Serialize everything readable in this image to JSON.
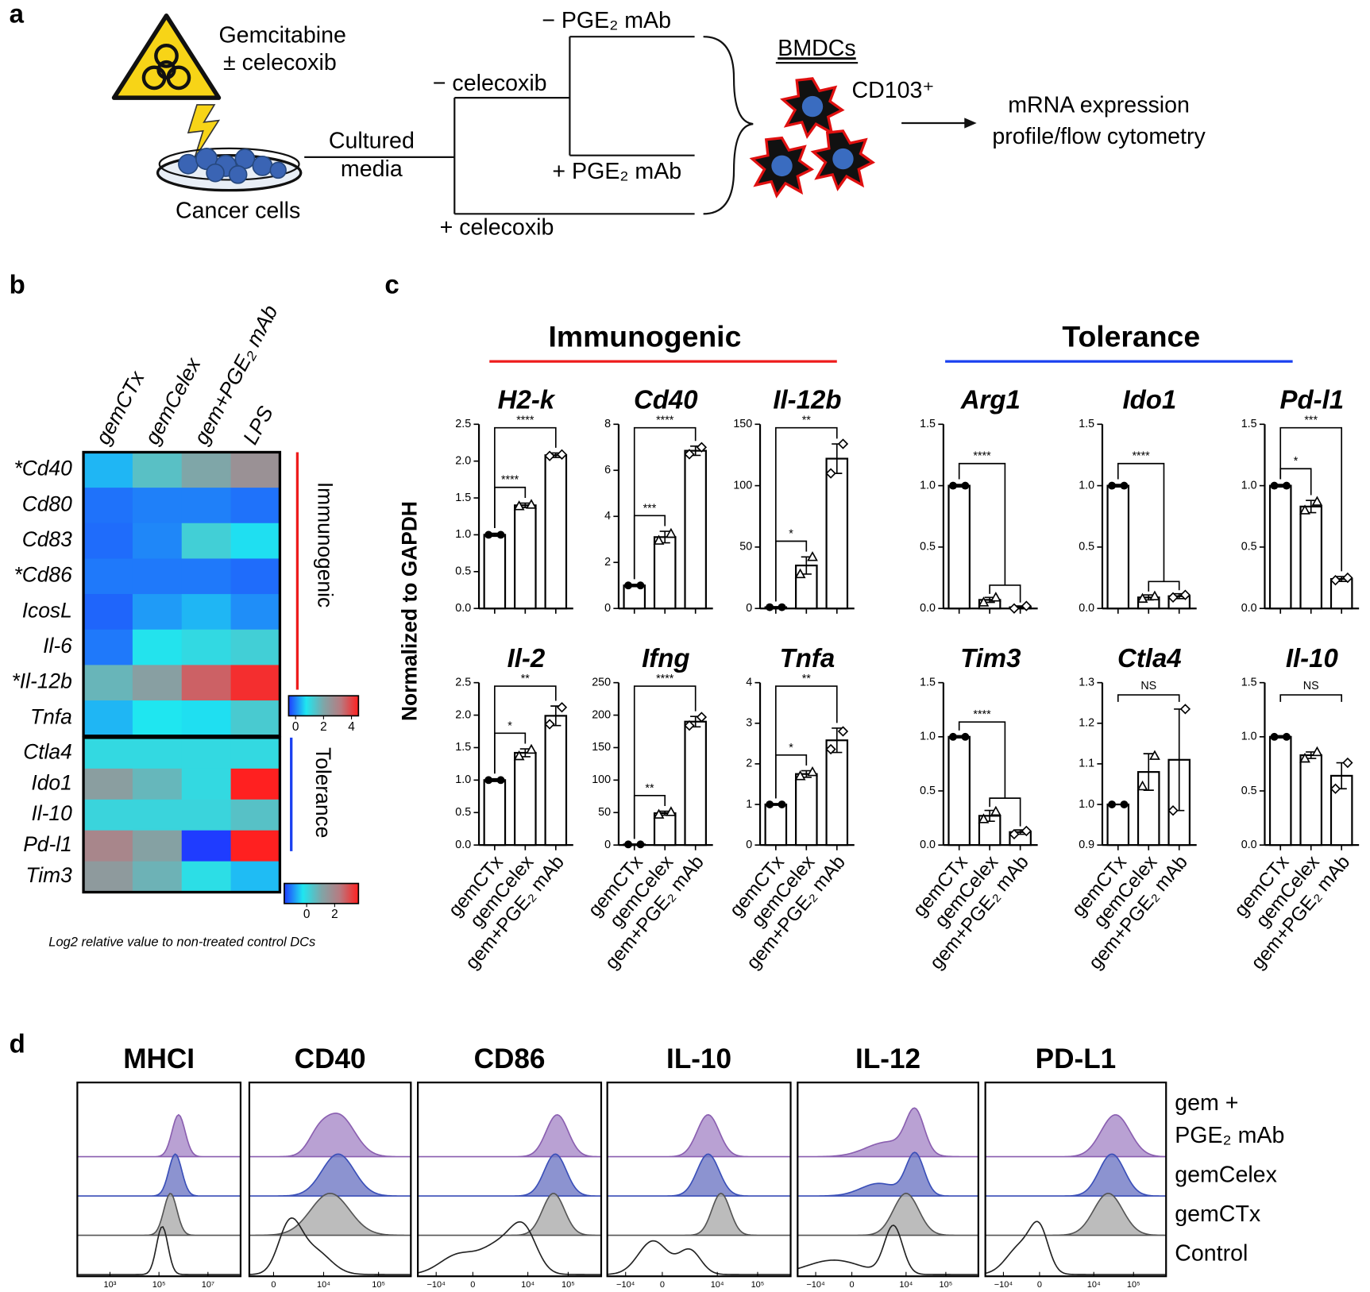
{
  "panel_labels": [
    "a",
    "b",
    "c",
    "d"
  ],
  "diagram": {
    "drug": "Gemcitabine",
    "drug2": "± celecoxib",
    "cells": "Cancer cells",
    "media1": "Cultured",
    "media2": "media",
    "minus_celecoxib": "− celecoxib",
    "plus_celecoxib": "+ celecoxib",
    "minus_mab": "− PGE₂ mAb",
    "plus_mab": "+ PGE₂ mAb",
    "bmdcs": "BMDCs",
    "marker": "CD103⁺",
    "readout1": "mRNA expression",
    "readout2": "profile/flow cytometry"
  },
  "panel_c": {
    "y_label": "Normalized to GAPDH",
    "groups": [
      {
        "label": "Immunogenic",
        "color": "#ee1c1c"
      },
      {
        "label": "Tolerance",
        "color": "#1a40f0"
      }
    ]
  },
  "chart_data": [
    {
      "type": "heatmap",
      "columns": [
        "gemCTx",
        "gemCelex",
        "gem+PGE₂ mAb",
        "LPS"
      ],
      "rows": [
        "*Cd40",
        "Cd80",
        "Cd83",
        "*Cd86",
        "IcosL",
        "Il-6",
        "*Il-12b",
        "Tnfa"
      ],
      "values": [
        [
          0.4,
          1.5,
          2.0,
          2.6
        ],
        [
          -0.1,
          0.0,
          0.0,
          -0.1
        ],
        [
          -0.15,
          0.05,
          1.2,
          0.7
        ],
        [
          -0.05,
          -0.05,
          -0.05,
          -0.15
        ],
        [
          -0.2,
          0.2,
          0.4,
          0.1
        ],
        [
          -0.05,
          0.8,
          1.0,
          1.2
        ],
        [
          1.7,
          2.2,
          3.6,
          4.3
        ],
        [
          0.4,
          0.75,
          0.7,
          1.3
        ]
      ],
      "group_label": "Immunogenic",
      "group_color": "#ee1c1c",
      "clim": [
        -0.5,
        4.5
      ],
      "colorbar_ticks": [
        0,
        2,
        4
      ],
      "colors": [
        "#1f3cff",
        "#1fe6f0",
        "#7fa6a8",
        "#b87a80",
        "#ff2020"
      ]
    },
    {
      "type": "heatmap",
      "rows": [
        "Ctla4",
        "Ido1",
        "Il-10",
        "Pd-l1",
        "Tim3"
      ],
      "values": [
        [
          0,
          0,
          0,
          0
        ],
        [
          1.3,
          0.7,
          0.0,
          3.7
        ],
        [
          0.1,
          0.1,
          0.1,
          0.5
        ],
        [
          2.0,
          1.2,
          -1.6,
          3.7
        ],
        [
          1.4,
          0.8,
          -0.1,
          -0.6
        ]
      ],
      "group_label": "Tolerance",
      "group_color": "#1a40f0",
      "clim": [
        -1.6,
        3.7
      ],
      "colorbar_ticks": [
        0,
        2
      ],
      "colors": [
        "#1f3cff",
        "#1fe6f0",
        "#7fa6a8",
        "#b87a80",
        "#ff2020"
      ],
      "caption": "Log2 relative value to non-treated control DCs"
    },
    {
      "type": "bar",
      "title": "H2-k",
      "values": [
        1.0,
        1.4,
        2.08
      ],
      "errors": [
        0.02,
        0.03,
        0.03
      ],
      "points": [
        [
          1.0,
          1.0
        ],
        [
          1.39,
          1.41
        ],
        [
          2.07,
          2.09
        ]
      ],
      "ylim": [
        0,
        2.5
      ],
      "yticks": [
        {
          "value": 0,
          "label": "0.0"
        },
        0.5,
        {
          "value": 1,
          "label": "1.0"
        },
        1.5,
        {
          "value": 2,
          "label": "2.0"
        },
        2.5
      ],
      "significance": [
        "****",
        "****"
      ]
    },
    {
      "type": "bar",
      "title": "Cd40",
      "values": [
        1.0,
        3.1,
        6.85
      ],
      "errors": [
        0.05,
        0.25,
        0.2
      ],
      "points": [
        [
          1.0,
          1.0
        ],
        [
          2.95,
          3.25
        ],
        [
          6.7,
          7.0
        ]
      ],
      "ylim": [
        0,
        8
      ],
      "yticks": [
        0,
        2,
        4,
        6,
        8
      ],
      "significance": [
        "***",
        "****"
      ]
    },
    {
      "type": "bar",
      "title": "Il-12b",
      "values": [
        1,
        35,
        122
      ],
      "errors": [
        0.5,
        7,
        12
      ],
      "points": [
        [
          1,
          1
        ],
        [
          28,
          42
        ],
        [
          110,
          134
        ]
      ],
      "ylim": [
        0,
        150
      ],
      "yticks": [
        0,
        50,
        100,
        150
      ],
      "significance": [
        "*",
        "**"
      ]
    },
    {
      "type": "bar",
      "title": "Arg1",
      "values": [
        1.0,
        0.07,
        0.01
      ],
      "errors": [
        0.01,
        0.02,
        0.01
      ],
      "points": [
        [
          1,
          1
        ],
        [
          0.05,
          0.09
        ],
        [
          0.0,
          0.02
        ]
      ],
      "ylim": [
        0,
        1.5
      ],
      "yticks": [
        {
          "value": 0,
          "label": "0.0"
        },
        0.5,
        {
          "value": 1,
          "label": "1.0"
        },
        1.5
      ],
      "significance": [
        "****"
      ]
    },
    {
      "type": "bar",
      "title": "Ido1",
      "values": [
        1.0,
        0.09,
        0.1
      ],
      "errors": [
        0.01,
        0.02,
        0.02
      ],
      "points": [
        [
          1,
          1
        ],
        [
          0.08,
          0.1
        ],
        [
          0.09,
          0.11
        ]
      ],
      "ylim": [
        0,
        1.5
      ],
      "yticks": [
        {
          "value": 0,
          "label": "0.0"
        },
        0.5,
        {
          "value": 1,
          "label": "1.0"
        },
        1.5
      ],
      "significance": [
        "****"
      ]
    },
    {
      "type": "bar",
      "title": "Pd-l1",
      "values": [
        1.0,
        0.83,
        0.24
      ],
      "errors": [
        0.01,
        0.05,
        0.02
      ],
      "points": [
        [
          1,
          1
        ],
        [
          0.8,
          0.87
        ],
        [
          0.23,
          0.25
        ]
      ],
      "ylim": [
        0,
        1.5
      ],
      "yticks": [
        {
          "value": 0,
          "label": "0.0"
        },
        0.5,
        {
          "value": 1,
          "label": "1.0"
        },
        1.5
      ],
      "significance": [
        "*",
        "***"
      ]
    },
    {
      "type": "bar",
      "title": "Il-2",
      "categories": [
        "gemCTx",
        "gemCelex",
        "gem+PGE₂ mAb"
      ],
      "values": [
        1.0,
        1.42,
        1.99
      ],
      "errors": [
        0.02,
        0.06,
        0.15
      ],
      "points": [
        [
          1,
          1
        ],
        [
          1.37,
          1.47
        ],
        [
          1.86,
          2.12
        ]
      ],
      "ylim": [
        0,
        2.5
      ],
      "yticks": [
        {
          "value": 0,
          "label": "0.0"
        },
        0.5,
        {
          "value": 1,
          "label": "1.0"
        },
        1.5,
        {
          "value": 2,
          "label": "2.0"
        },
        2.5
      ],
      "significance": [
        "*",
        "**"
      ]
    },
    {
      "type": "bar",
      "title": "Ifng",
      "categories": [
        "gemCTx",
        "gemCelex",
        "gem+PGE₂ mAb"
      ],
      "values": [
        1,
        49,
        190
      ],
      "errors": [
        0.5,
        3,
        8
      ],
      "points": [
        [
          1,
          1
        ],
        [
          47,
          51
        ],
        [
          184,
          197
        ]
      ],
      "ylim": [
        0,
        250
      ],
      "yticks": [
        0,
        50,
        100,
        150,
        200,
        250
      ],
      "significance": [
        "**",
        "****"
      ]
    },
    {
      "type": "bar",
      "title": "Tnfa",
      "categories": [
        "gemCTx",
        "gemCelex",
        "gem+PGE₂ mAb"
      ],
      "values": [
        1.0,
        1.75,
        2.58
      ],
      "errors": [
        0.02,
        0.08,
        0.3
      ],
      "points": [
        [
          1,
          1
        ],
        [
          1.7,
          1.8
        ],
        [
          2.36,
          2.8
        ]
      ],
      "ylim": [
        0,
        4
      ],
      "yticks": [
        0,
        1,
        2,
        3,
        4
      ],
      "significance": [
        "*",
        "**"
      ]
    },
    {
      "type": "bar",
      "title": "Tim3",
      "categories": [
        "gemCTx",
        "gemCelex",
        "gem+PGE₂ mAb"
      ],
      "values": [
        1.0,
        0.27,
        0.12
      ],
      "errors": [
        0.01,
        0.05,
        0.02
      ],
      "points": [
        [
          1,
          1
        ],
        [
          0.24,
          0.31
        ],
        [
          0.1,
          0.13
        ]
      ],
      "ylim": [
        0,
        1.5
      ],
      "yticks": [
        {
          "value": 0,
          "label": "0.0"
        },
        0.5,
        {
          "value": 1,
          "label": "1.0"
        },
        1.5
      ],
      "significance": [
        "****"
      ]
    },
    {
      "type": "bar",
      "title": "Ctla4",
      "categories": [
        "gemCTx",
        "gemCelex",
        "gem+PGE₂ mAb"
      ],
      "values": [
        1.0,
        1.08,
        1.11
      ],
      "errors": [
        0.0,
        0.045,
        0.125
      ],
      "points": [
        [
          1,
          1
        ],
        [
          1.045,
          1.12
        ],
        [
          0.985,
          1.235
        ]
      ],
      "ylim": [
        0.9,
        1.3
      ],
      "yticks": [
        0.9,
        {
          "value": 1,
          "label": "1.0"
        },
        1.1,
        1.2,
        1.3
      ],
      "significance": [
        "NS"
      ]
    },
    {
      "type": "bar",
      "title": "Il-10",
      "categories": [
        "gemCTx",
        "gemCelex",
        "gem+PGE₂ mAb"
      ],
      "values": [
        1.0,
        0.83,
        0.64
      ],
      "errors": [
        0.01,
        0.03,
        0.12
      ],
      "points": [
        [
          1,
          1
        ],
        [
          0.8,
          0.86
        ],
        [
          0.52,
          0.76
        ]
      ],
      "ylim": [
        0,
        1.5
      ],
      "yticks": [
        {
          "value": 0,
          "label": "0.0"
        },
        0.5,
        {
          "value": 1,
          "label": "1.0"
        },
        1.5
      ],
      "significance": [
        "NS"
      ]
    },
    {
      "type": "flow",
      "panels": [
        {
          "title": "MHCI",
          "xtick_labels": [
            "10³",
            "10⁵",
            "10⁷"
          ]
        },
        {
          "title": "CD40",
          "xtick_labels": [
            "0",
            "10⁴",
            "10⁵"
          ]
        },
        {
          "title": "CD86",
          "xtick_labels": [
            "−10⁴",
            "0",
            "10⁴",
            "10⁵"
          ]
        },
        {
          "title": "IL-10",
          "xtick_labels": [
            "−10⁴",
            "0",
            "10⁴",
            "10⁵"
          ]
        },
        {
          "title": "IL-12",
          "xtick_labels": [
            "−10⁴",
            "0",
            "10⁴",
            "10⁵"
          ]
        },
        {
          "title": "PD-L1",
          "xtick_labels": [
            "−10⁴",
            "0",
            "10⁴",
            "10⁵"
          ]
        }
      ],
      "legend": [
        "gem +",
        "PGE₂ mAb",
        "gemCelex",
        "gemCTx",
        "Control"
      ]
    }
  ]
}
